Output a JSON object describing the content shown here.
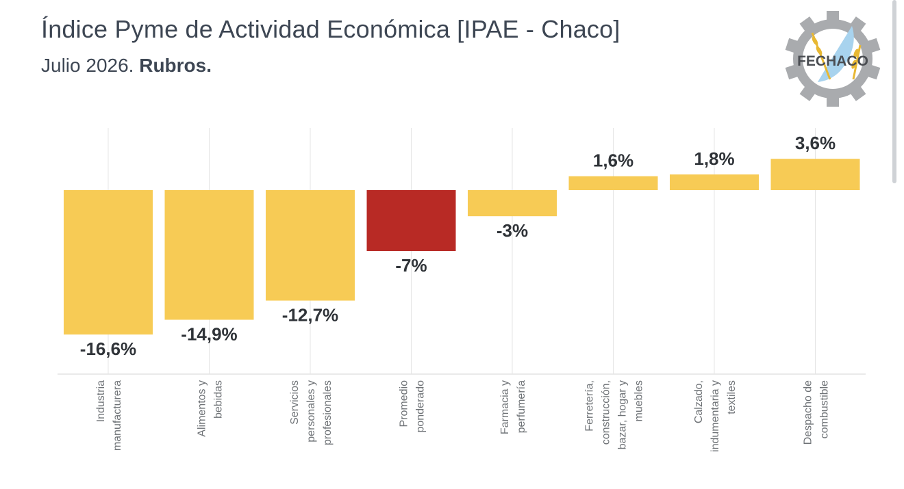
{
  "header": {
    "title": "Índice Pyme de Actividad Económica [IPAE - Chaco]",
    "subtitle_period": "Julio 2026.",
    "subtitle_bold": "Rubros."
  },
  "logo": {
    "text": "FECHACO",
    "icon": "gear-wheat-logo-icon"
  },
  "colors": {
    "bar": "#f7cb55",
    "bar_highlight": "#b82a25",
    "grid": "#e4e4e4",
    "label": "#2f3338",
    "category": "#6e7276"
  },
  "chart_data": {
    "type": "bar",
    "categories": [
      [
        "Industria",
        "manufacturera"
      ],
      [
        "Alimentos y",
        "bebidas"
      ],
      [
        "Servicios",
        "personales y",
        "profesionales"
      ],
      [
        "Promedio",
        "ponderado"
      ],
      [
        "Farmacia y",
        "perfumería"
      ],
      [
        "Ferretería,",
        "construcción,",
        "bazar, hogar y",
        "muebles"
      ],
      [
        "Calzado,",
        "indumentaria y",
        "textiles"
      ],
      [
        "Despacho de",
        "combustible"
      ]
    ],
    "values": [
      -16.6,
      -14.9,
      -12.7,
      -7,
      -3,
      1.6,
      1.8,
      3.6
    ],
    "data_labels": [
      "-16,6%",
      "-14,9%",
      "-12,7%",
      "-7%",
      "-3%",
      "1,6%",
      "1,8%",
      "3,6%"
    ],
    "highlight_index": 3,
    "ylim": [
      -21.5,
      7.3
    ],
    "xlabel": "",
    "ylabel": "",
    "grid": "vertical"
  }
}
